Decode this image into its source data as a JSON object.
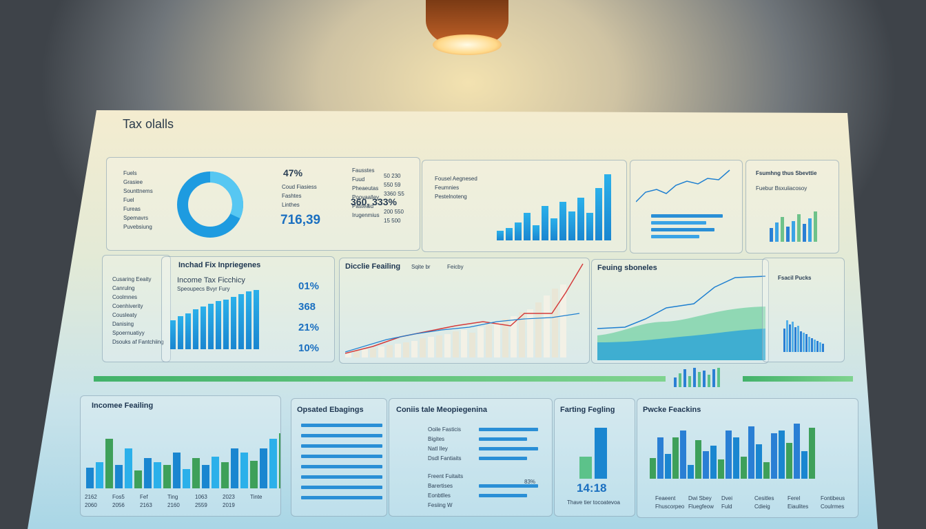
{
  "header": {
    "title": "Tax olalls"
  },
  "panel1": {
    "big1": "47%",
    "big2": "716,39",
    "mid": "360,  333%",
    "labels": [
      "Fuels",
      "Grasiee",
      "Sounttnems",
      "Fuel",
      "Fureas",
      "Spemavrs",
      "Puvebsiung"
    ],
    "mid_labels": [
      "Coud Fiasiess",
      "Fashtes",
      "Linthes"
    ],
    "right_labels": [
      "Fausstes",
      "Fuud",
      "Pheaeutas",
      "Poovaalley",
      "Pasteaid",
      "Irugenmius"
    ],
    "right_vals": [
      "50 230",
      "550 59",
      "3360 S5",
      "",
      "200 550",
      "15 500"
    ]
  },
  "panel2": {
    "legend": [
      "Fousel Aegnesed",
      "Feumnies",
      "Pestelnoteng"
    ]
  },
  "panel4": {
    "title": "Fsumhng thus Sbevttie",
    "sub": "Fuebur Bsxuiiacosoy"
  },
  "panel5": {
    "title": "Inchad Fix Inpriegenes",
    "chart_title": "Income Tax Ficchicy",
    "sub": "Speoupecs Bvyr Fury",
    "labels": [
      "Cusaring Eeaity",
      "Canrulng",
      "Coolmnes",
      "Coenhiverity",
      "Cousleaty",
      "Danising",
      "Spoernuatiyy",
      "Dsouks af Fantchiing"
    ],
    "pcts": [
      "01%",
      "368",
      "21%",
      "10%"
    ]
  },
  "panel6": {
    "title": "Dicclie Feailing",
    "legend": [
      "Sqite br",
      "Feicby"
    ]
  },
  "panel7": {
    "title": "Feuing sboneles"
  },
  "panel8": {
    "title": "Fsacil Pucks"
  },
  "panel9": {
    "title": "Incomee Feailing",
    "ticks": [
      "2162",
      "Fos5",
      "Fef",
      "Ting",
      "1063",
      "2023",
      "Tinte",
      "2060",
      "2056",
      "2163",
      "2160",
      "2559",
      "2019"
    ]
  },
  "panel10": {
    "title": "Opsated Ebagings"
  },
  "panel11": {
    "title": "Coniis tale Meopiegenina",
    "labels": [
      "Ooile Fasticis",
      "Bigites",
      "Natl Iley",
      "Dsdl Fantiaits",
      "Freent Fuitaits",
      "Barertises",
      "Eonbtlles",
      "Fesiing W"
    ],
    "pct": "83%"
  },
  "panel12": {
    "title": "Farting Fegling",
    "big": "14:18",
    "sub": "Thave tier tocoatevoa"
  },
  "panel13": {
    "title": "Pwcke Feackins",
    "labels": [
      "Feaeent",
      "Dwi Sbey",
      "Dvei",
      "Cesitles",
      "Ferel",
      "Fontibeus",
      "Fhuscorpeo",
      "Fluegfeow",
      "Fuld",
      "Cdieig",
      "Eiaulites",
      "Coulrmes"
    ]
  }
}
